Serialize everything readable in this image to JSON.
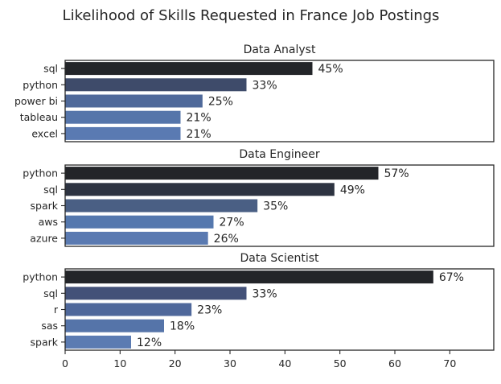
{
  "chart_data": {
    "type": "bar",
    "orientation": "horizontal",
    "title": "Likelihood of Skills Requested in France Job Postings",
    "xlim": [
      0,
      78
    ],
    "xticks": [
      0,
      10,
      20,
      30,
      40,
      50,
      60,
      70
    ],
    "value_suffix": "%",
    "grid": false,
    "shared_x_axis": true,
    "palette_dark_to_light": [
      "#232529",
      "#35435f",
      "#485f8c",
      "#5879af",
      "#5b7bb2"
    ],
    "panels": [
      {
        "title": "Data Analyst",
        "categories": [
          "sql",
          "python",
          "power bi",
          "tableau",
          "excel"
        ],
        "values": [
          45,
          33,
          25,
          21,
          21
        ],
        "colors": [
          "#232529",
          "#3e4b6a",
          "#4f699a",
          "#5575aa",
          "#5a7ab2"
        ]
      },
      {
        "title": "Data Engineer",
        "categories": [
          "python",
          "sql",
          "spark",
          "aws",
          "azure"
        ],
        "values": [
          57,
          49,
          35,
          27,
          26
        ],
        "colors": [
          "#232529",
          "#2d3341",
          "#4a5f84",
          "#5578ae",
          "#5a7ab1"
        ]
      },
      {
        "title": "Data Scientist",
        "categories": [
          "python",
          "sql",
          "r",
          "sas",
          "spark"
        ],
        "values": [
          67,
          33,
          23,
          18,
          12
        ],
        "colors": [
          "#232529",
          "#435178",
          "#4f689b",
          "#5574a9",
          "#5b7bb2"
        ]
      }
    ]
  }
}
